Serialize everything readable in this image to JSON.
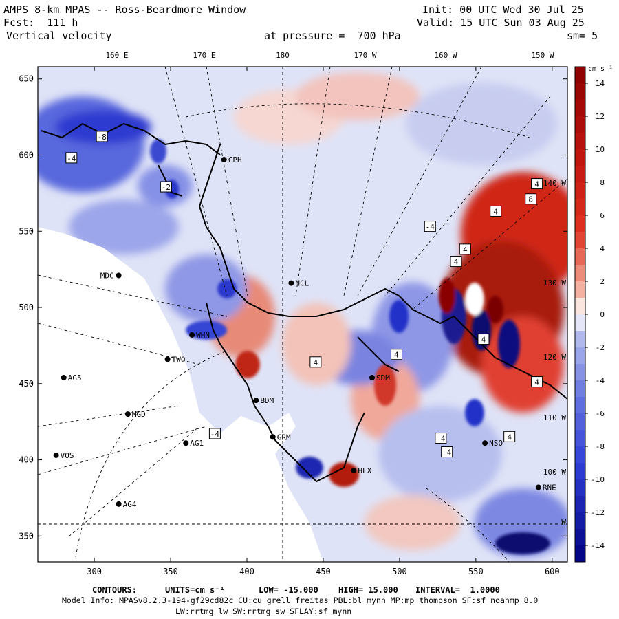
{
  "header": {
    "title": "AMPS 8-km MPAS -- Ross-Beardmore Window",
    "fcst": "Fcst:  111 h",
    "field": "Vertical velocity",
    "init": "Init: 00 UTC Wed 30 Jul 25",
    "valid": "Valid: 15 UTC Sun 03 Aug 25",
    "level": "at pressure =  700 hPa",
    "smooth": "sm= 5"
  },
  "map": {
    "x_ticks": [
      "300",
      "350",
      "400",
      "450",
      "500",
      "550",
      "600"
    ],
    "y_ticks": [
      "650",
      "600",
      "550",
      "500",
      "450",
      "400",
      "350"
    ],
    "lon_labels": [
      "160 E",
      "170 E",
      "180",
      "170 W",
      "160 W",
      "150 W"
    ],
    "right_lon_labels": [
      "140 W",
      "130 W",
      "120 W",
      "110 W",
      "100 W",
      "W"
    ],
    "stations": [
      {
        "id": "MDC",
        "label": "MDC",
        "x": 316,
        "y": 521
      },
      {
        "id": "NCL",
        "label": "NCL",
        "x": 429,
        "y": 516
      },
      {
        "id": "WHN",
        "label": "WHN",
        "x": 364,
        "y": 482
      },
      {
        "id": "TWO",
        "label": "TWO",
        "x": 348,
        "y": 466
      },
      {
        "id": "AG5",
        "label": "AG5",
        "x": 280,
        "y": 454
      },
      {
        "id": "MGD",
        "label": "MGD",
        "x": 322,
        "y": 430
      },
      {
        "id": "AG1",
        "label": "AG1",
        "x": 360,
        "y": 411
      },
      {
        "id": "VOS",
        "label": "VOS",
        "x": 275,
        "y": 403
      },
      {
        "id": "AG4",
        "label": "AG4",
        "x": 316,
        "y": 371
      },
      {
        "id": "GRM",
        "label": "GRM",
        "x": 417,
        "y": 415
      },
      {
        "id": "BDM",
        "label": "BDM",
        "x": 406,
        "y": 439
      },
      {
        "id": "CPH",
        "label": "CPH",
        "x": 385,
        "y": 597
      },
      {
        "id": "SDM",
        "label": "SDM",
        "x": 482,
        "y": 454
      },
      {
        "id": "HLX",
        "label": "HLX",
        "x": 470,
        "y": 393
      },
      {
        "id": "NSO",
        "label": "NSO",
        "x": 556,
        "y": 411
      },
      {
        "id": "RNE",
        "label": "RNE",
        "x": 591,
        "y": 382
      }
    ],
    "contour_labels": [
      {
        "t": "-4",
        "x": 285,
        "y": 598
      },
      {
        "t": "-8",
        "x": 305,
        "y": 612
      },
      {
        "t": "-2",
        "x": 347,
        "y": 579
      },
      {
        "t": "-4",
        "x": 520,
        "y": 553
      },
      {
        "t": "4",
        "x": 590,
        "y": 581
      },
      {
        "t": "8",
        "x": 586,
        "y": 571
      },
      {
        "t": "4",
        "x": 537,
        "y": 530
      },
      {
        "t": "4",
        "x": 543,
        "y": 538
      },
      {
        "t": "4",
        "x": 445,
        "y": 464
      },
      {
        "t": "4",
        "x": 498,
        "y": 469
      },
      {
        "t": "-4",
        "x": 527,
        "y": 414
      },
      {
        "t": "-4",
        "x": 531,
        "y": 405
      },
      {
        "t": "4",
        "x": 555,
        "y": 479
      },
      {
        "t": "4",
        "x": 590,
        "y": 451
      },
      {
        "t": "4",
        "x": 572,
        "y": 415
      },
      {
        "t": "-4",
        "x": 379,
        "y": 417
      },
      {
        "t": "4",
        "x": 563,
        "y": 563
      }
    ]
  },
  "colorbar": {
    "units_label": "cm s⁻¹",
    "ticks": [
      "14",
      "12",
      "10",
      "8",
      "6",
      "4",
      "2",
      "0",
      "-2",
      "-4",
      "-6",
      "-8",
      "-10",
      "-12",
      "-14"
    ],
    "colors": {
      "pos_max": "#8b0000",
      "pos_mid": "#e03020",
      "pos_low": "#f4b0a0",
      "neutral": "#ffffff",
      "neg_low": "#b0b8ec",
      "neg_mid": "#3040d8",
      "neg_max": "#000080"
    }
  },
  "footer": {
    "contours_label": "CONTOURS:",
    "units_label": "UNITS=cm s⁻¹",
    "low": "LOW= -15.000",
    "high": "HIGH= 15.000",
    "interval": "INTERVAL=  1.0000",
    "model_info": "Model Info: MPASv8.2.3-194-gf29cd82c CU:cu_grell_freitas PBL:bl_mynn MP:mp_thompson SF:sf_noahmp 8.0",
    "physics": "LW:rrtmg_lw SW:rrtmg_sw SFLAY:sf_mynn"
  }
}
